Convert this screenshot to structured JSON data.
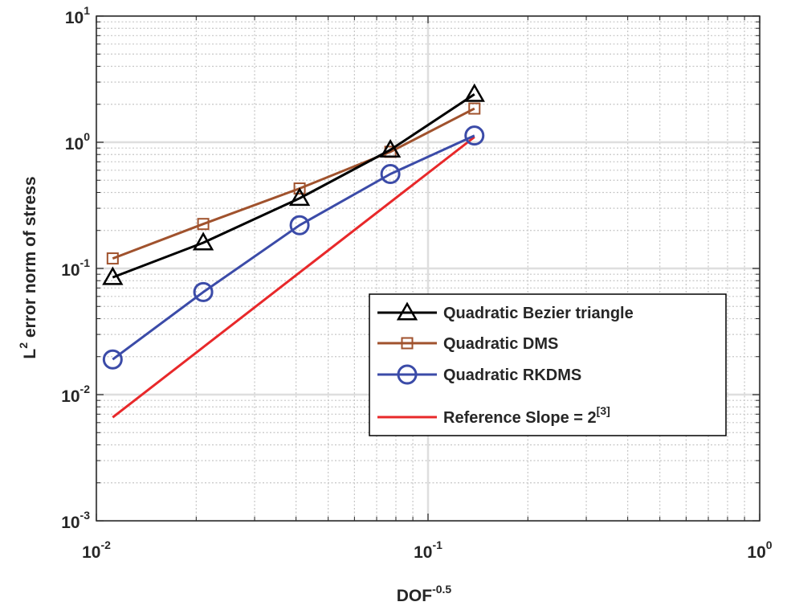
{
  "chart_data": {
    "type": "line",
    "xscale": "log",
    "yscale": "log",
    "xlim": [
      0.01,
      1
    ],
    "ylim": [
      0.001,
      10
    ],
    "grid": true,
    "minor_grid": true,
    "xlabel_base": "DOF",
    "xlabel_exp": "-0.5",
    "ylabel_base": "L",
    "ylabel_exp": "2",
    "ylabel_rest": " error norm of stress",
    "x_ticks": [
      {
        "value": 0.01,
        "base": "10",
        "exp": "-2"
      },
      {
        "value": 0.1,
        "base": "10",
        "exp": "-1"
      },
      {
        "value": 1,
        "base": "10",
        "exp": "0"
      }
    ],
    "y_ticks": [
      {
        "value": 0.001,
        "base": "10",
        "exp": "-3"
      },
      {
        "value": 0.01,
        "base": "10",
        "exp": "-2"
      },
      {
        "value": 0.1,
        "base": "10",
        "exp": "-1"
      },
      {
        "value": 1,
        "base": "10",
        "exp": "0"
      },
      {
        "value": 10,
        "base": "10",
        "exp": "1"
      }
    ],
    "legend_position": "lower-right",
    "series": [
      {
        "name": "Quadratic Bezier triangle",
        "color": "#000000",
        "marker": "triangle",
        "x": [
          0.0112,
          0.021,
          0.041,
          0.077,
          0.138
        ],
        "y": [
          0.085,
          0.16,
          0.36,
          0.87,
          2.4
        ]
      },
      {
        "name": "Quadratic DMS",
        "color": "#a0522d",
        "marker": "square",
        "x": [
          0.0112,
          0.021,
          0.041,
          0.077,
          0.138
        ],
        "y": [
          0.12,
          0.225,
          0.43,
          0.84,
          1.85
        ]
      },
      {
        "name": "Quadratic RKDMS",
        "color": "#3b4ba8",
        "marker": "circle",
        "x": [
          0.0112,
          0.021,
          0.041,
          0.077,
          0.138
        ],
        "y": [
          0.019,
          0.065,
          0.22,
          0.56,
          1.13
        ]
      },
      {
        "name": "Reference Slope = 2",
        "legend_exp": "[3]",
        "color": "#e8282a",
        "marker": "none",
        "x": [
          0.0112,
          0.138
        ],
        "y": [
          0.0066,
          1.1
        ]
      }
    ]
  }
}
